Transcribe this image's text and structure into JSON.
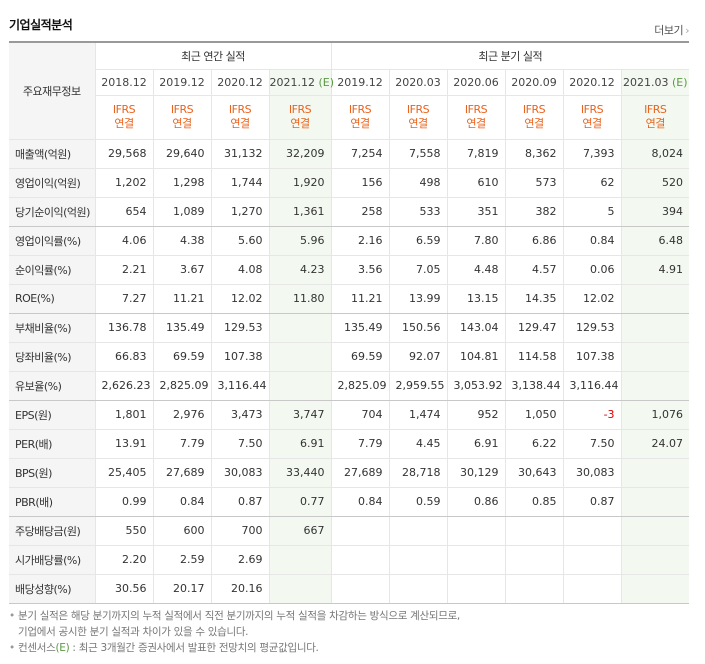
{
  "header": {
    "title": "기업실적분석",
    "more_label": "더보기",
    "more_icon": "chevron-right-icon"
  },
  "table": {
    "corner_label": "주요재무정보",
    "group_annual": "최근 연간 실적",
    "group_quarterly": "최근 분기 실적",
    "estimate_mark": "(E)",
    "periods": [
      {
        "date": "2018.12",
        "estimate": false
      },
      {
        "date": "2019.12",
        "estimate": false
      },
      {
        "date": "2020.12",
        "estimate": false
      },
      {
        "date": "2021.12",
        "estimate": true
      },
      {
        "date": "2019.12",
        "estimate": false
      },
      {
        "date": "2020.03",
        "estimate": false
      },
      {
        "date": "2020.06",
        "estimate": false
      },
      {
        "date": "2020.09",
        "estimate": false
      },
      {
        "date": "2020.12",
        "estimate": false
      },
      {
        "date": "2021.03",
        "estimate": true
      }
    ],
    "standard_line1": "IFRS",
    "standard_line2": "연결",
    "rows": [
      {
        "label": "매출액(억원)",
        "values": [
          "29,568",
          "29,640",
          "31,132",
          "32,209",
          "7,254",
          "7,558",
          "7,819",
          "8,362",
          "7,393",
          "8,024"
        ]
      },
      {
        "label": "영업이익(억원)",
        "values": [
          "1,202",
          "1,298",
          "1,744",
          "1,920",
          "156",
          "498",
          "610",
          "573",
          "62",
          "520"
        ]
      },
      {
        "label": "당기순이익(억원)",
        "values": [
          "654",
          "1,089",
          "1,270",
          "1,361",
          "258",
          "533",
          "351",
          "382",
          "5",
          "394"
        ]
      },
      {
        "label": "영업이익률(%)",
        "values": [
          "4.06",
          "4.38",
          "5.60",
          "5.96",
          "2.16",
          "6.59",
          "7.80",
          "6.86",
          "0.84",
          "6.48"
        ]
      },
      {
        "label": "순이익률(%)",
        "values": [
          "2.21",
          "3.67",
          "4.08",
          "4.23",
          "3.56",
          "7.05",
          "4.48",
          "4.57",
          "0.06",
          "4.91"
        ]
      },
      {
        "label": "ROE(%)",
        "values": [
          "7.27",
          "11.21",
          "12.02",
          "11.80",
          "11.21",
          "13.99",
          "13.15",
          "14.35",
          "12.02",
          ""
        ]
      },
      {
        "label": "부채비율(%)",
        "values": [
          "136.78",
          "135.49",
          "129.53",
          "",
          "135.49",
          "150.56",
          "143.04",
          "129.47",
          "129.53",
          ""
        ]
      },
      {
        "label": "당좌비율(%)",
        "values": [
          "66.83",
          "69.59",
          "107.38",
          "",
          "69.59",
          "92.07",
          "104.81",
          "114.58",
          "107.38",
          ""
        ]
      },
      {
        "label": "유보율(%)",
        "values": [
          "2,626.23",
          "2,825.09",
          "3,116.44",
          "",
          "2,825.09",
          "2,959.55",
          "3,053.92",
          "3,138.44",
          "3,116.44",
          ""
        ]
      },
      {
        "label": "EPS(원)",
        "values": [
          "1,801",
          "2,976",
          "3,473",
          "3,747",
          "704",
          "1,474",
          "952",
          "1,050",
          "-3",
          "1,076"
        ]
      },
      {
        "label": "PER(배)",
        "values": [
          "13.91",
          "7.79",
          "7.50",
          "6.91",
          "7.79",
          "4.45",
          "6.91",
          "6.22",
          "7.50",
          "24.07"
        ]
      },
      {
        "label": "BPS(원)",
        "values": [
          "25,405",
          "27,689",
          "30,083",
          "33,440",
          "27,689",
          "28,718",
          "30,129",
          "30,643",
          "30,083",
          ""
        ]
      },
      {
        "label": "PBR(배)",
        "values": [
          "0.99",
          "0.84",
          "0.87",
          "0.77",
          "0.84",
          "0.59",
          "0.86",
          "0.85",
          "0.87",
          ""
        ]
      },
      {
        "label": "주당배당금(원)",
        "values": [
          "550",
          "600",
          "700",
          "667",
          "",
          "",
          "",
          "",
          "",
          ""
        ]
      },
      {
        "label": "시가배당률(%)",
        "values": [
          "2.20",
          "2.59",
          "2.69",
          "",
          "",
          "",
          "",
          "",
          "",
          ""
        ]
      },
      {
        "label": "배당성향(%)",
        "values": [
          "30.56",
          "20.17",
          "20.16",
          "",
          "",
          "",
          "",
          "",
          "",
          ""
        ]
      }
    ]
  },
  "notes": {
    "line1a": "분기 실적은 해당 분기까지의 누적 실적에서 직전 분기까지의 누적 실적을 차감하는 방식으로 계산되므로,",
    "line1b": "기업에서 공시한 분기 실적과 차이가 있을 수 있습니다.",
    "line2_prefix": "컨센서스",
    "line2_mark": "(E)",
    "line2_suffix": " : 최근 3개월간 증권사에서 발표한 전망치의 평균값입니다."
  },
  "colors": {
    "ifrs": "#e8631d",
    "estimate_bg": "#f3f9f1",
    "estimate_mark": "#5a9a43",
    "negative": "#d50000"
  }
}
